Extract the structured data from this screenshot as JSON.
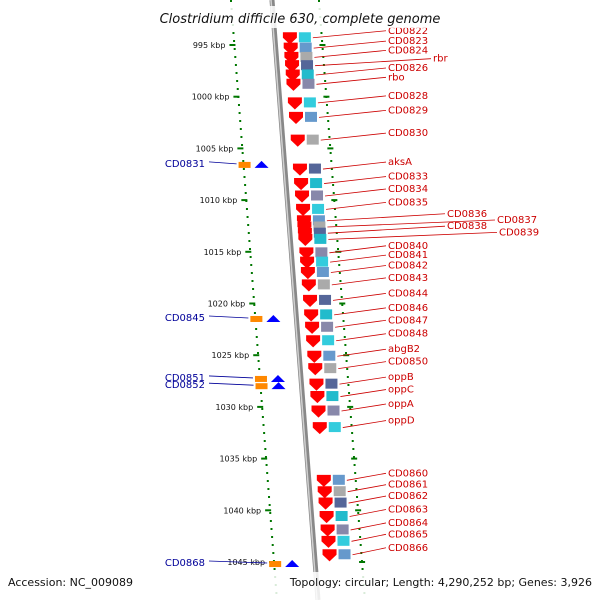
{
  "title": "Clostridium difficile 630, complete genome",
  "footer": {
    "accession": "Accession: NC_009089",
    "topology": "Topology: circular; Length: 4,290,252 bp; Genes: 3,926"
  },
  "colors": {
    "forward": "#ff0000",
    "reverse": "#0000ff",
    "scale": "#007700",
    "label_fwd": "#cc0000",
    "label_rev": "#000099"
  },
  "ticks": [
    {
      "label": "995 kbp",
      "pos": 995
    },
    {
      "label": "1000 kbp",
      "pos": 1000
    },
    {
      "label": "1005 kbp",
      "pos": 1005
    },
    {
      "label": "1010 kbp",
      "pos": 1010
    },
    {
      "label": "1015 kbp",
      "pos": 1015
    },
    {
      "label": "1020 kbp",
      "pos": 1020
    },
    {
      "label": "1025 kbp",
      "pos": 1025
    },
    {
      "label": "1030 kbp",
      "pos": 1030
    },
    {
      "label": "1035 kbp",
      "pos": 1035
    },
    {
      "label": "1040 kbp",
      "pos": 1040
    },
    {
      "label": "1045 kbp",
      "pos": 1045
    }
  ],
  "forward_genes": [
    {
      "name": "CD0822",
      "pos": 994.3
    },
    {
      "name": "CD0823",
      "pos": 995.3
    },
    {
      "name": "CD0824",
      "pos": 996.2
    },
    {
      "name": "rbr",
      "pos": 997.0
    },
    {
      "name": "CD0826",
      "pos": 997.9
    },
    {
      "name": "rbo",
      "pos": 998.8
    },
    {
      "name": "CD0828",
      "pos": 1000.6
    },
    {
      "name": "CD0829",
      "pos": 1002.0
    },
    {
      "name": "CD0830",
      "pos": 1004.2
    },
    {
      "name": "aksA",
      "pos": 1007.0
    },
    {
      "name": "CD0833",
      "pos": 1008.4
    },
    {
      "name": "CD0834",
      "pos": 1009.6
    },
    {
      "name": "CD0835",
      "pos": 1010.9
    },
    {
      "name": "CD0836",
      "pos": 1012.0
    },
    {
      "name": "CD0837",
      "pos": 1012.6
    },
    {
      "name": "CD0838",
      "pos": 1013.2
    },
    {
      "name": "CD0839",
      "pos": 1013.8
    },
    {
      "name": "CD0840",
      "pos": 1015.1
    },
    {
      "name": "CD0841",
      "pos": 1016.0
    },
    {
      "name": "CD0842",
      "pos": 1017.0
    },
    {
      "name": "CD0843",
      "pos": 1018.2
    },
    {
      "name": "CD0844",
      "pos": 1019.7
    },
    {
      "name": "CD0846",
      "pos": 1021.1
    },
    {
      "name": "CD0847",
      "pos": 1022.3
    },
    {
      "name": "CD0848",
      "pos": 1023.6
    },
    {
      "name": "abgB2",
      "pos": 1025.1
    },
    {
      "name": "CD0850",
      "pos": 1026.3
    },
    {
      "name": "oppB",
      "pos": 1027.8
    },
    {
      "name": "oppC",
      "pos": 1029.0
    },
    {
      "name": "oppA",
      "pos": 1030.4
    },
    {
      "name": "oppD",
      "pos": 1032.0
    },
    {
      "name": "CD0860",
      "pos": 1037.1
    },
    {
      "name": "CD0861",
      "pos": 1038.2
    },
    {
      "name": "CD0862",
      "pos": 1039.3
    },
    {
      "name": "CD0863",
      "pos": 1040.6
    },
    {
      "name": "CD0864",
      "pos": 1041.9
    },
    {
      "name": "CD0865",
      "pos": 1043.0
    },
    {
      "name": "CD0866",
      "pos": 1044.3
    }
  ],
  "reverse_genes": [
    {
      "name": "CD0831",
      "pos": 1006.5
    },
    {
      "name": "CD0845",
      "pos": 1021.4
    },
    {
      "name": "CD0851",
      "pos": 1027.2
    },
    {
      "name": "CD0852",
      "pos": 1027.9
    },
    {
      "name": "CD0868",
      "pos": 1045.1
    }
  ]
}
